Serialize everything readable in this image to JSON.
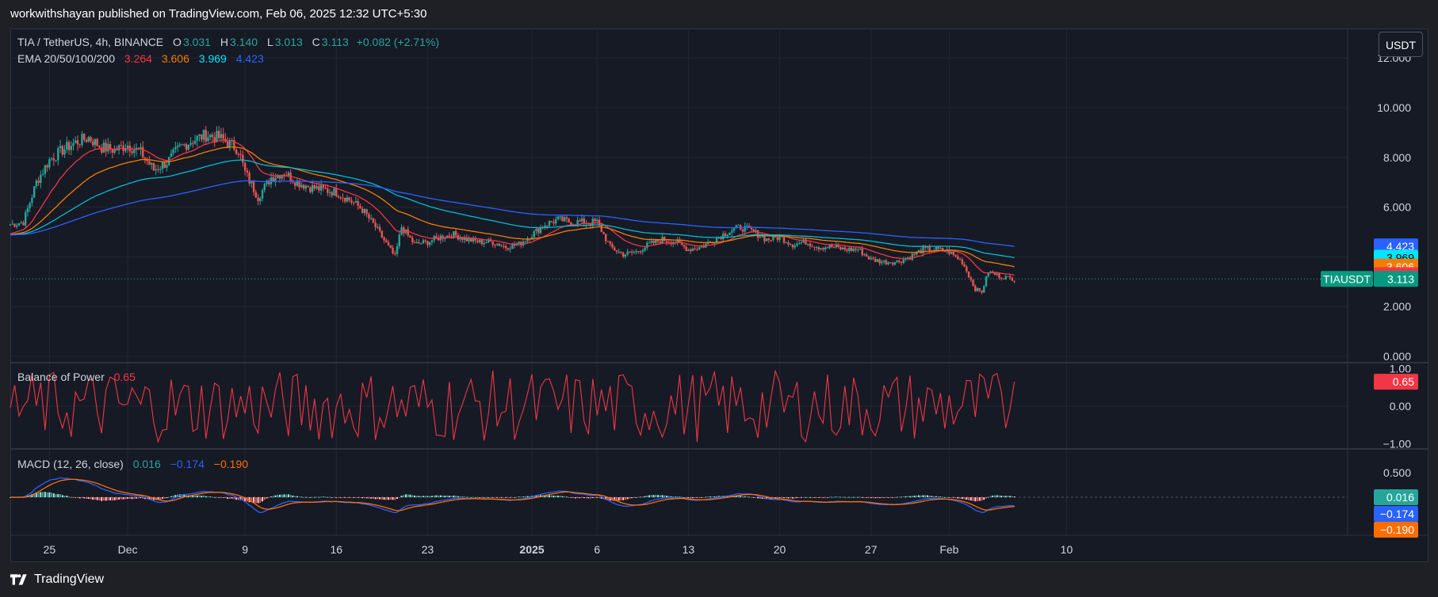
{
  "header": {
    "published_by": "workwithshayan published on TradingView.com, Feb 06, 2025 12:32 UTC+5:30"
  },
  "footer": {
    "brand": "TradingView"
  },
  "currency_button": "USDT",
  "legend": {
    "symbol": "TIA / TetherUS, 4h, BINANCE",
    "o_label": "O",
    "o_value": "3.031",
    "h_label": "H",
    "h_value": "3.140",
    "l_label": "L",
    "l_value": "3.013",
    "c_label": "C",
    "c_value": "3.113",
    "change": "+0.082 (+2.71%)",
    "ema_label": "EMA 20/50/100/200",
    "ema20": "3.264",
    "ema50": "3.606",
    "ema100": "3.969",
    "ema200": "4.423",
    "bop_label": "Balance of Power",
    "bop_value": "0.65",
    "macd_label": "MACD (12, 26, close)",
    "macd_hist": "0.016",
    "macd_line": "−0.174",
    "macd_signal": "−0.190"
  },
  "colors": {
    "up": "#26a69a",
    "down": "#ef5350",
    "ema20": "#f23645",
    "ema50": "#f57c00",
    "ema100": "#00bcd4",
    "ema200": "#2962ff",
    "grid": "#232632",
    "text": "#d1d4dc",
    "bop": "#f23645",
    "macd_line": "#2962ff",
    "macd_signal": "#ff6d00"
  },
  "chart_data": {
    "type": "line",
    "title": "TIA / TetherUS, 4h, BINANCE",
    "y_axis_ticks": [
      "2.000",
      "4.000",
      "6.000",
      "8.000",
      "10.000",
      "12.000"
    ],
    "ylim": [
      0,
      12
    ],
    "x_ticks": [
      "25",
      "Dec",
      "9",
      "16",
      "23",
      "2025",
      "6",
      "13",
      "20",
      "27",
      "Feb",
      "10"
    ],
    "x_tick_day": [
      25,
      31,
      40,
      47,
      54,
      62,
      67,
      74,
      81,
      88,
      94,
      103
    ],
    "price_anchor_days": [
      22,
      23,
      24,
      25,
      26,
      27,
      28,
      29,
      30,
      31,
      32,
      33,
      34,
      35,
      36,
      37,
      38,
      39,
      39.5,
      40,
      41,
      42,
      43,
      44,
      45,
      46,
      47,
      48,
      49,
      50,
      51,
      51.5,
      52,
      53,
      54,
      55,
      56,
      57,
      58,
      59,
      60,
      61,
      62,
      63,
      64,
      65,
      66,
      67,
      68,
      69,
      70,
      71,
      72,
      73,
      74,
      75,
      76,
      77,
      78,
      79,
      80,
      81,
      82,
      83,
      84,
      85,
      86,
      87,
      88,
      89,
      90,
      91,
      92,
      93,
      94,
      95,
      96,
      96.5,
      97,
      98,
      99
    ],
    "price_anchor_values": [
      5.3,
      5.4,
      7.0,
      7.9,
      8.3,
      8.6,
      8.8,
      8.4,
      8.3,
      8.5,
      8.2,
      7.5,
      7.8,
      8.4,
      8.7,
      8.9,
      8.8,
      8.5,
      8.3,
      7.4,
      6.4,
      7.2,
      7.4,
      7.0,
      6.8,
      6.7,
      6.6,
      6.3,
      5.9,
      5.2,
      4.4,
      4.0,
      5.2,
      4.5,
      4.6,
      4.8,
      4.9,
      4.7,
      4.6,
      4.6,
      4.4,
      4.5,
      4.9,
      5.3,
      5.5,
      5.4,
      5.4,
      5.4,
      4.4,
      4.1,
      4.2,
      4.5,
      4.7,
      4.6,
      4.3,
      4.4,
      4.7,
      5.0,
      5.2,
      5.0,
      4.7,
      4.8,
      4.5,
      4.6,
      4.4,
      4.4,
      4.3,
      4.3,
      3.9,
      3.8,
      3.8,
      4.0,
      4.3,
      4.3,
      4.2,
      3.8,
      2.7,
      2.6,
      3.4,
      3.2,
      3.113
    ],
    "ema_last": {
      "EMA20": 3.264,
      "EMA50": 3.606,
      "EMA100": 3.969,
      "EMA200": 4.423
    },
    "last_price": 3.113,
    "last_price_label": "TIAUSDT",
    "bop_ticks": [
      "1.00",
      "0.00",
      "−1.00"
    ],
    "bop_ylim": [
      -1.3,
      1.3
    ],
    "bop_last": 0.65,
    "macd_ticks": [
      "0.500"
    ],
    "macd_ylim": [
      -0.7,
      0.85
    ],
    "macd_last": {
      "histogram": 0.016,
      "macd": -0.174,
      "signal": -0.19
    }
  }
}
